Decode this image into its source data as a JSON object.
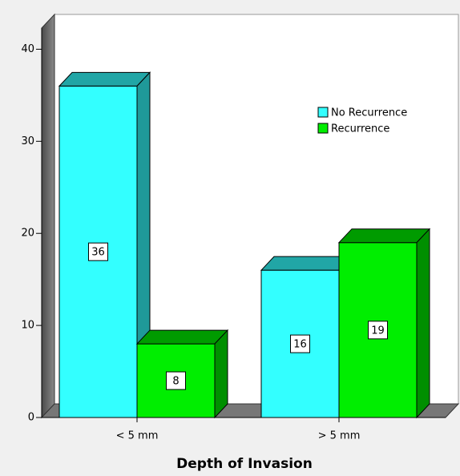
{
  "chart_data": {
    "type": "bar",
    "x_label": "Depth of Invasion",
    "categories": [
      "< 5 mm",
      "> 5 mm"
    ],
    "series": [
      {
        "name": "No Recurrence",
        "color": "#33ffff",
        "values": [
          36,
          16
        ]
      },
      {
        "name": "Recurrence",
        "color": "#00ee00",
        "values": [
          8,
          19
        ]
      }
    ],
    "ylim": [
      0,
      42.3
    ],
    "yticks": [
      0,
      10,
      20,
      30,
      40
    ],
    "legend": "upper right"
  }
}
